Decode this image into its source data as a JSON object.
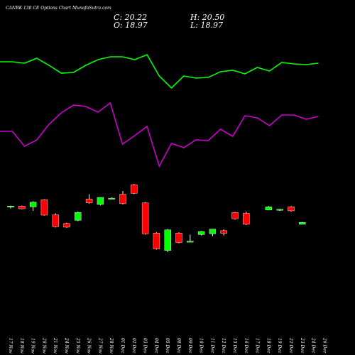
{
  "header": {
    "title": "CANBK 130 CE Options Chart MunafaSutra.com",
    "close": "C: 20.22",
    "high": "H: 20.50",
    "open": "O: 18.97",
    "low": "L: 18.97"
  },
  "colors": {
    "up": "#00ff00",
    "down": "#ff0000",
    "line1": "#00ff00",
    "line2": "#cc00cc",
    "bg": "#000000"
  },
  "chart_data": [
    {
      "type": "candlestick",
      "categories": [
        "17 Nov",
        "18 Nov",
        "19 Nov",
        "20 Nov",
        "21 Nov",
        "24 Nov",
        "25 Nov",
        "26 Nov",
        "27 Nov",
        "28 Nov",
        "01 Dec",
        "02 Dec",
        "03 Dec",
        "04 Dec",
        "05 Dec",
        "08 Dec",
        "09 Dec",
        "10 Dec",
        "11 Dec",
        "12 Dec",
        "15 Dec",
        "16 Dec",
        "17 Dec",
        "18 Dec",
        "19 Dec",
        "22 Dec",
        "23 Dec",
        "24 Dec",
        "26 Dec"
      ],
      "candles": [
        {
          "open": 30.0,
          "high": 30.8,
          "low": 29.0,
          "close": 30.5
        },
        {
          "open": 30.5,
          "high": 30.8,
          "low": 28.5,
          "close": 28.8
        },
        {
          "open": 30.0,
          "high": 33.5,
          "low": 27.5,
          "close": 33.0
        },
        {
          "open": 34.5,
          "high": 34.8,
          "low": 24.5,
          "close": 24.8
        },
        {
          "open": 25.0,
          "high": 26.0,
          "low": 17.0,
          "close": 17.5
        },
        {
          "open": 19.5,
          "high": 20.0,
          "low": 16.8,
          "close": 17.2
        },
        {
          "open": 21.5,
          "high": 27.0,
          "low": 21.0,
          "close": 26.5
        },
        {
          "open": 35.0,
          "high": 38.0,
          "low": 32.0,
          "close": 32.5
        },
        {
          "open": 31.5,
          "high": 36.0,
          "low": 31.0,
          "close": 36.0
        },
        {
          "open": 35.5,
          "high": 36.0,
          "low": 35.0,
          "close": 35.5
        },
        {
          "open": 38.0,
          "high": 40.0,
          "low": 31.5,
          "close": 32.0
        },
        {
          "open": 44.0,
          "high": 44.5,
          "low": 38.0,
          "close": 38.5
        },
        {
          "open": 32.5,
          "high": 33.0,
          "low": 12.5,
          "close": 13.0
        },
        {
          "open": 13.5,
          "high": 14.0,
          "low": 3.0,
          "close": 3.5
        },
        {
          "open": 2.5,
          "high": 16.0,
          "low": 1.5,
          "close": 15.5
        },
        {
          "open": 13.5,
          "high": 14.0,
          "low": 7.0,
          "close": 7.5
        },
        {
          "open": 8.2,
          "high": 12.5,
          "low": 8.0,
          "close": 8.4
        },
        {
          "open": 12.5,
          "high": 14.8,
          "low": 12.0,
          "close": 14.5
        },
        {
          "open": 13.0,
          "high": 16.0,
          "low": 11.5,
          "close": 16.0
        },
        {
          "open": 15.0,
          "high": 15.8,
          "low": 12.0,
          "close": 13.2
        },
        {
          "open": 26.5,
          "high": 26.8,
          "low": 22.0,
          "close": 22.5
        },
        {
          "open": 26.0,
          "high": 27.0,
          "low": 18.5,
          "close": 19.0
        },
        {
          "open": 28.0,
          "high": 30.5,
          "low": 28.0,
          "close": 30.0
        },
        {
          "open": 28.0,
          "high": 28.8,
          "low": 27.5,
          "close": 28.5
        },
        {
          "open": 30.0,
          "high": 30.5,
          "low": 27.0,
          "close": 27.5
        },
        {
          "open": 18.97,
          "high": 20.5,
          "low": 18.97,
          "close": 20.22
        }
      ],
      "candle_indices": [
        0,
        1,
        2,
        3,
        4,
        5,
        6,
        7,
        8,
        9,
        10,
        11,
        12,
        13,
        14,
        15,
        16,
        17,
        18,
        19,
        20,
        21,
        23,
        24,
        25,
        26
      ]
    },
    {
      "type": "line",
      "series": [
        {
          "color": "#00ff00",
          "values": [
            87,
            87,
            89,
            82,
            92,
            103,
            102,
            92,
            84,
            80,
            80,
            84,
            77,
            107,
            124,
            107,
            110,
            109,
            101,
            99,
            104,
            95,
            100,
            88,
            90,
            91,
            89
          ]
        },
        {
          "color": "#cc00cc",
          "values": [
            185,
            185,
            206,
            197,
            175,
            159,
            148,
            150,
            158,
            145,
            203,
            191,
            178,
            234,
            202,
            208,
            197,
            198,
            182,
            192,
            163,
            166,
            177,
            162,
            162,
            168,
            164
          ]
        }
      ]
    }
  ]
}
